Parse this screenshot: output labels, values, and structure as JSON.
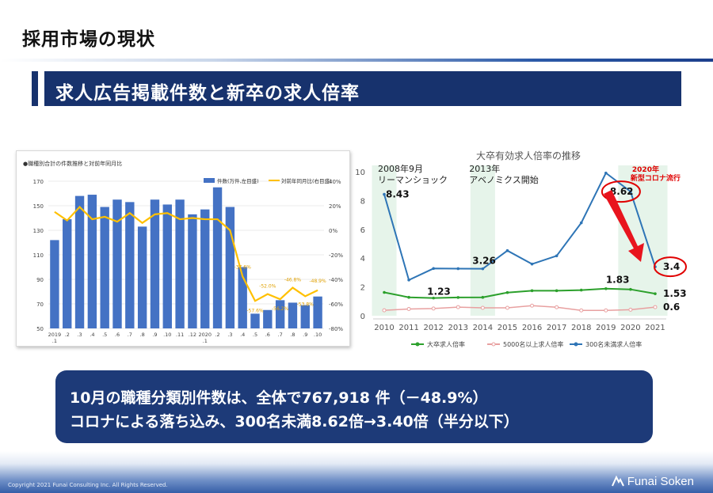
{
  "slide": {
    "title": "採用市場の現状",
    "banner": "求人広告掲載件数と新卒の求人倍率",
    "summary_line1": "10月の職種分類別件数は、全体で767,918 件（－48.9%）",
    "summary_line2": "コロナによる落ち込み、300名未満8.62倍→3.40倍（半分以下）",
    "copyright": "Copyright 2021 Funai Consulting Inc. All Rights Reserved.",
    "brand": "Funai Soken",
    "colors": {
      "navy": "#17326d",
      "bar": "#4472c4",
      "line_yellow": "#ffc000",
      "blue_line": "#2e75b6",
      "green_line": "#2ca02c",
      "pink_line": "#e8a0a0",
      "highlight": "#e00000"
    }
  },
  "chart_data": [
    {
      "type": "bar",
      "title": "●職種別合計の件数推移と対前年同月比",
      "categories": [
        "2019\n.1",
        ".2",
        ".3",
        ".4",
        ".5",
        ".6",
        ".7",
        ".8",
        ".9",
        ".10",
        ".11",
        ".12",
        "2020\n.1",
        ".2",
        ".3",
        ".4",
        ".5",
        ".6",
        ".7",
        ".8",
        ".9",
        ".10"
      ],
      "series": [
        {
          "name": "件数(万件,左目盛)",
          "axis": "left",
          "values": [
            122,
            139,
            158,
            159,
            149,
            155,
            153,
            133,
            155,
            151,
            155,
            143,
            147,
            165,
            149,
            100,
            62,
            65,
            73,
            71,
            69,
            76
          ]
        },
        {
          "name": "対前年同月比(右目盛)",
          "axis": "right",
          "values": [
            15,
            8,
            19,
            9,
            11,
            7,
            14,
            6,
            13,
            14,
            9,
            10,
            9,
            9,
            0,
            -37.6,
            -57.6,
            -52.0,
            -56.2,
            -46.8,
            -53.8,
            -48.9
          ]
        }
      ],
      "annotations": [
        "-37.6%",
        "-57.6%",
        "-52.0%",
        "-56.2%",
        "-46.8%",
        "-53.8%",
        "-48.9%"
      ],
      "left_ticks": [
        "170",
        "150",
        "130",
        "110",
        "90",
        "70",
        "50"
      ],
      "right_ticks": [
        "40%",
        "20%",
        "0%",
        "-20%",
        "-40%",
        "-60%",
        "-80%"
      ],
      "ylim_left": [
        50,
        170
      ],
      "ylim_right": [
        -80,
        40
      ],
      "legend": "top-right"
    },
    {
      "type": "line",
      "title": "大卒有効求人倍率の推移",
      "x": [
        "2010",
        "2011",
        "2012",
        "2013",
        "2014",
        "2015",
        "2016",
        "2017",
        "2018",
        "2019",
        "2020",
        "2021"
      ],
      "series": [
        {
          "name": "大卒求人倍率",
          "values": [
            1.62,
            1.28,
            1.23,
            1.27,
            1.28,
            1.61,
            1.74,
            1.74,
            1.78,
            1.88,
            1.83,
            1.53
          ]
        },
        {
          "name": "5000名以上求人倍率",
          "values": [
            0.38,
            0.47,
            0.5,
            0.6,
            0.55,
            0.55,
            0.7,
            0.59,
            0.37,
            0.37,
            0.42,
            0.6
          ]
        },
        {
          "name": "300名未満求人倍率",
          "values": [
            8.43,
            2.48,
            3.28,
            3.27,
            3.26,
            4.52,
            3.59,
            4.16,
            6.45,
            9.91,
            8.62,
            3.4
          ]
        }
      ],
      "ylim": [
        0,
        10
      ],
      "y_ticks": [
        "0",
        "2",
        "4",
        "6",
        "8",
        "10"
      ],
      "data_labels": [
        "8.43",
        "1.23",
        "3.26",
        "1.83",
        "8.62",
        "3.4",
        "1.53",
        "0.6"
      ],
      "events": [
        {
          "label1": "2008年9月",
          "label2": "リーマンショック"
        },
        {
          "label1": "2013年",
          "label2": "アベノミクス開始"
        },
        {
          "label1": "2020年",
          "label2": "新型コロナ流行"
        }
      ],
      "legend": "bottom"
    }
  ]
}
